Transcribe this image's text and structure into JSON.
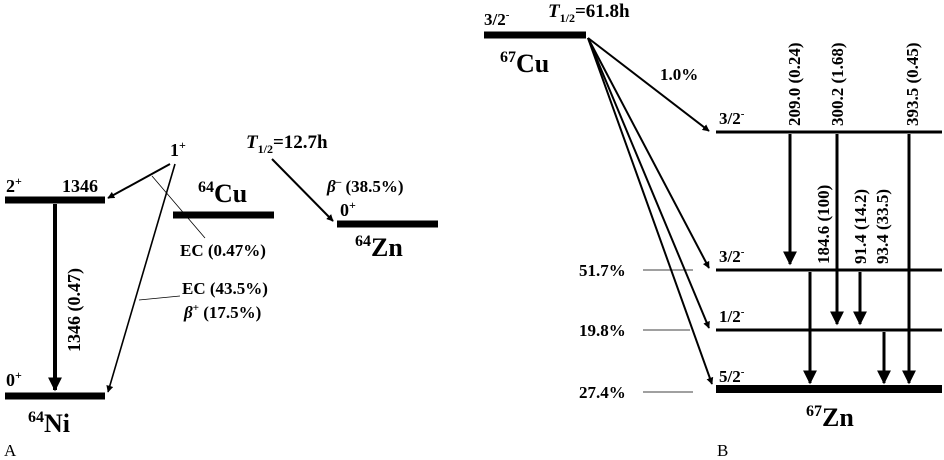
{
  "panel_a": {
    "panel_letter": "A",
    "ni64": {
      "symbol": "Ni",
      "mass": "64",
      "ground_spin": "0",
      "ground_parity": "+",
      "excited_spin": "2",
      "excited_parity": "+",
      "excited_energy": "1346"
    },
    "cu64": {
      "symbol": "Cu",
      "mass": "64",
      "spin": "1",
      "parity": "+",
      "half_life_label": "T",
      "half_life_sub": "1/2",
      "half_life_value": "=12.7h"
    },
    "zn64": {
      "symbol": "Zn",
      "mass": "64",
      "ground_spin": "0",
      "ground_parity": "+"
    },
    "gamma_1346": "1346 (0.47)",
    "ec_small": "EC (0.47%)",
    "ec_large": "EC (43.5%)",
    "beta_plus_symbol": "β",
    "beta_plus_sign": "+",
    "beta_plus_value": " (17.5%)",
    "beta_minus_symbol": "β",
    "beta_minus_sign": "–",
    "beta_minus_value": " (38.5%)"
  },
  "panel_b": {
    "panel_letter": "B",
    "cu67": {
      "symbol": "Cu",
      "mass": "67",
      "spin_parity": "3/2",
      "parity": "-",
      "half_life_label": "T",
      "half_life_sub": "1/2",
      "half_life_value": "=61.8h"
    },
    "zn67": {
      "symbol": "Zn",
      "mass": "67"
    },
    "levels": [
      {
        "spin": "3/2",
        "parity": "-",
        "branch": "1.0%"
      },
      {
        "spin": "3/2",
        "parity": "-",
        "branch": "51.7%"
      },
      {
        "spin": "1/2",
        "parity": "-",
        "branch": "19.8%"
      },
      {
        "spin": "5/2",
        "parity": "-",
        "branch": "27.4%"
      }
    ],
    "gammas": {
      "g209": "209.0 (0.24)",
      "g300": "300.2 (1.68)",
      "g393": "393.5 (0.45)",
      "g184": "184.6 (100)",
      "g91": "91.4 (14.2)",
      "g93": "93.4 (33.5)"
    }
  }
}
